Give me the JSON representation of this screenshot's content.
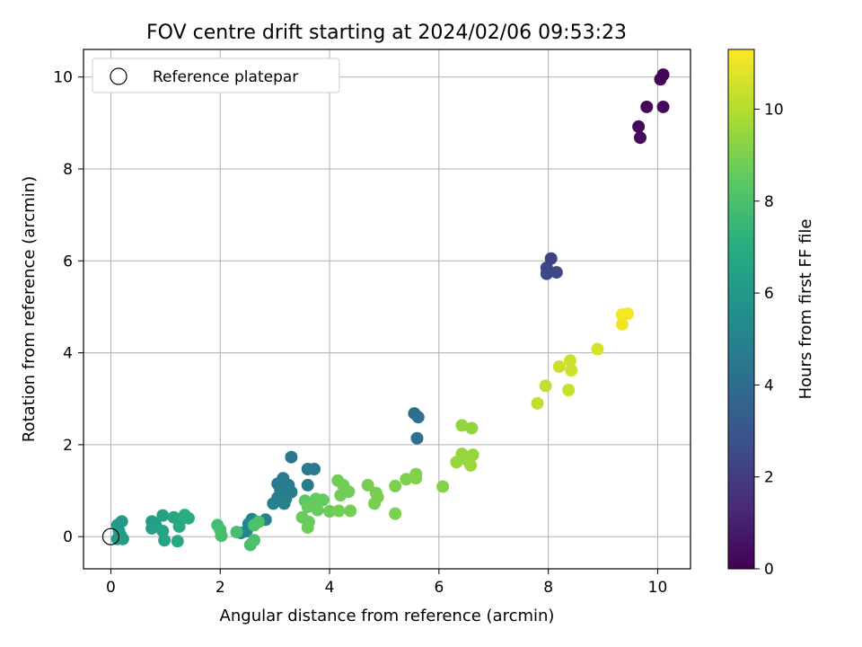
{
  "chart_data": {
    "type": "scatter",
    "title": "FOV centre drift starting at 2024/02/06 09:53:23",
    "xlabel": "Angular distance from reference (arcmin)",
    "ylabel": "Rotation from reference (arcmin)",
    "colorbar_label": "Hours from first FF file",
    "xlim": [
      -0.5,
      10.6
    ],
    "ylim": [
      -0.7,
      10.6
    ],
    "xticks": [
      0,
      2,
      4,
      6,
      8,
      10
    ],
    "yticks": [
      0,
      2,
      4,
      6,
      8,
      10
    ],
    "colorbar_range": [
      0,
      11.3
    ],
    "colorbar_ticks": [
      0,
      2,
      4,
      6,
      8,
      10
    ],
    "colormap": "viridis",
    "grid": true,
    "legend": {
      "placement": "top-left",
      "entries": [
        "Reference platepar"
      ]
    },
    "reference_point": {
      "x": 0,
      "y": 0,
      "marker": "hollow-circle"
    },
    "series": [
      {
        "points": [
          {
            "x": 10.1,
            "y": 10.05,
            "c": 0.1
          },
          {
            "x": 10.05,
            "y": 9.95,
            "c": 0.15
          },
          {
            "x": 9.8,
            "y": 9.35,
            "c": 0.2
          },
          {
            "x": 10.1,
            "y": 9.35,
            "c": 0.25
          },
          {
            "x": 9.65,
            "y": 8.92,
            "c": 0.3
          },
          {
            "x": 9.68,
            "y": 8.68,
            "c": 0.35
          },
          {
            "x": 8.05,
            "y": 6.05,
            "c": 2.2
          },
          {
            "x": 7.97,
            "y": 5.85,
            "c": 2.3
          },
          {
            "x": 7.97,
            "y": 5.72,
            "c": 2.35
          },
          {
            "x": 8.15,
            "y": 5.75,
            "c": 2.4
          },
          {
            "x": 5.55,
            "y": 2.68,
            "c": 4.0
          },
          {
            "x": 5.62,
            "y": 2.6,
            "c": 4.05
          },
          {
            "x": 5.6,
            "y": 2.14,
            "c": 4.1
          },
          {
            "x": 3.3,
            "y": 1.73,
            "c": 4.4
          },
          {
            "x": 3.6,
            "y": 1.47,
            "c": 4.5
          },
          {
            "x": 3.72,
            "y": 1.47,
            "c": 4.55
          },
          {
            "x": 3.15,
            "y": 1.27,
            "c": 4.6
          },
          {
            "x": 3.05,
            "y": 1.15,
            "c": 4.65
          },
          {
            "x": 3.25,
            "y": 1.12,
            "c": 4.7
          },
          {
            "x": 3.6,
            "y": 1.12,
            "c": 4.72
          },
          {
            "x": 3.1,
            "y": 1.02,
            "c": 4.75
          },
          {
            "x": 3.3,
            "y": 0.97,
            "c": 4.78
          },
          {
            "x": 3.15,
            "y": 0.92,
            "c": 4.8
          },
          {
            "x": 3.05,
            "y": 0.85,
            "c": 4.82
          },
          {
            "x": 3.2,
            "y": 0.82,
            "c": 4.85
          },
          {
            "x": 2.97,
            "y": 0.72,
            "c": 4.88
          },
          {
            "x": 3.17,
            "y": 0.72,
            "c": 4.9
          },
          {
            "x": 2.83,
            "y": 0.37,
            "c": 5.0
          },
          {
            "x": 2.58,
            "y": 0.38,
            "c": 5.05
          },
          {
            "x": 2.52,
            "y": 0.28,
            "c": 5.1
          },
          {
            "x": 2.48,
            "y": 0.12,
            "c": 5.15
          },
          {
            "x": 2.38,
            "y": 0.08,
            "c": 5.2
          },
          {
            "x": 0.2,
            "y": 0.33,
            "c": 6.0
          },
          {
            "x": 0.12,
            "y": 0.25,
            "c": 6.05
          },
          {
            "x": 0.15,
            "y": 0.12,
            "c": 6.1
          },
          {
            "x": 0.18,
            "y": 0.03,
            "c": 6.12
          },
          {
            "x": 0.12,
            "y": -0.05,
            "c": 6.15
          },
          {
            "x": 0.22,
            "y": -0.05,
            "c": 6.18
          },
          {
            "x": 0.75,
            "y": 0.33,
            "c": 6.3
          },
          {
            "x": 0.82,
            "y": 0.25,
            "c": 6.35
          },
          {
            "x": 0.75,
            "y": 0.18,
            "c": 6.4
          },
          {
            "x": 0.95,
            "y": 0.46,
            "c": 6.5
          },
          {
            "x": 0.95,
            "y": 0.12,
            "c": 6.55
          },
          {
            "x": 0.98,
            "y": -0.08,
            "c": 6.6
          },
          {
            "x": 1.15,
            "y": 0.42,
            "c": 6.7
          },
          {
            "x": 1.22,
            "y": -0.1,
            "c": 6.75
          },
          {
            "x": 1.25,
            "y": 0.33,
            "c": 6.8
          },
          {
            "x": 1.25,
            "y": 0.22,
            "c": 6.85
          },
          {
            "x": 1.35,
            "y": 0.47,
            "c": 7.0
          },
          {
            "x": 1.42,
            "y": 0.4,
            "c": 7.05
          },
          {
            "x": 1.95,
            "y": 0.25,
            "c": 7.8
          },
          {
            "x": 2.0,
            "y": 0.15,
            "c": 7.85
          },
          {
            "x": 2.02,
            "y": 0.02,
            "c": 7.9
          },
          {
            "x": 2.3,
            "y": 0.1,
            "c": 7.9
          },
          {
            "x": 2.55,
            "y": -0.18,
            "c": 7.95
          },
          {
            "x": 2.62,
            "y": -0.08,
            "c": 8.0
          },
          {
            "x": 2.62,
            "y": 0.25,
            "c": 8.0
          },
          {
            "x": 2.7,
            "y": 0.32,
            "c": 8.05
          },
          {
            "x": 3.55,
            "y": 0.78,
            "c": 8.5
          },
          {
            "x": 3.7,
            "y": 0.75,
            "c": 8.5
          },
          {
            "x": 3.75,
            "y": 0.82,
            "c": 8.55
          },
          {
            "x": 3.88,
            "y": 0.8,
            "c": 8.55
          },
          {
            "x": 3.6,
            "y": 0.65,
            "c": 8.6
          },
          {
            "x": 3.78,
            "y": 0.58,
            "c": 8.6
          },
          {
            "x": 3.5,
            "y": 0.42,
            "c": 8.65
          },
          {
            "x": 3.62,
            "y": 0.32,
            "c": 8.65
          },
          {
            "x": 3.6,
            "y": 0.2,
            "c": 8.7
          },
          {
            "x": 4.0,
            "y": 0.55,
            "c": 8.7
          },
          {
            "x": 4.15,
            "y": 1.22,
            "c": 8.75
          },
          {
            "x": 4.25,
            "y": 1.12,
            "c": 8.75
          },
          {
            "x": 4.35,
            "y": 0.98,
            "c": 8.8
          },
          {
            "x": 4.2,
            "y": 0.9,
            "c": 8.8
          },
          {
            "x": 4.17,
            "y": 0.56,
            "c": 8.85
          },
          {
            "x": 4.38,
            "y": 0.56,
            "c": 8.85
          },
          {
            "x": 4.7,
            "y": 1.12,
            "c": 8.9
          },
          {
            "x": 4.85,
            "y": 0.95,
            "c": 8.9
          },
          {
            "x": 4.88,
            "y": 0.86,
            "c": 8.95
          },
          {
            "x": 4.82,
            "y": 0.72,
            "c": 8.95
          },
          {
            "x": 5.2,
            "y": 1.1,
            "c": 9.0
          },
          {
            "x": 5.2,
            "y": 0.5,
            "c": 9.0
          },
          {
            "x": 5.4,
            "y": 1.25,
            "c": 9.05
          },
          {
            "x": 5.58,
            "y": 1.36,
            "c": 9.1
          },
          {
            "x": 5.58,
            "y": 1.27,
            "c": 9.1
          },
          {
            "x": 6.07,
            "y": 1.09,
            "c": 9.15
          },
          {
            "x": 6.42,
            "y": 2.42,
            "c": 9.4
          },
          {
            "x": 6.6,
            "y": 2.36,
            "c": 9.4
          },
          {
            "x": 6.42,
            "y": 1.8,
            "c": 9.45
          },
          {
            "x": 6.62,
            "y": 1.78,
            "c": 9.45
          },
          {
            "x": 6.32,
            "y": 1.62,
            "c": 9.5
          },
          {
            "x": 6.52,
            "y": 1.67,
            "c": 9.5
          },
          {
            "x": 6.58,
            "y": 1.55,
            "c": 9.55
          },
          {
            "x": 7.8,
            "y": 2.9,
            "c": 10.2
          },
          {
            "x": 7.95,
            "y": 3.28,
            "c": 10.3
          },
          {
            "x": 8.37,
            "y": 3.19,
            "c": 10.35
          },
          {
            "x": 8.2,
            "y": 3.7,
            "c": 10.4
          },
          {
            "x": 8.4,
            "y": 3.83,
            "c": 10.45
          },
          {
            "x": 8.42,
            "y": 3.62,
            "c": 10.45
          },
          {
            "x": 8.9,
            "y": 4.08,
            "c": 10.6
          },
          {
            "x": 9.35,
            "y": 4.62,
            "c": 11.1
          },
          {
            "x": 9.35,
            "y": 4.83,
            "c": 11.15
          },
          {
            "x": 9.45,
            "y": 4.85,
            "c": 11.2
          }
        ]
      }
    ]
  }
}
